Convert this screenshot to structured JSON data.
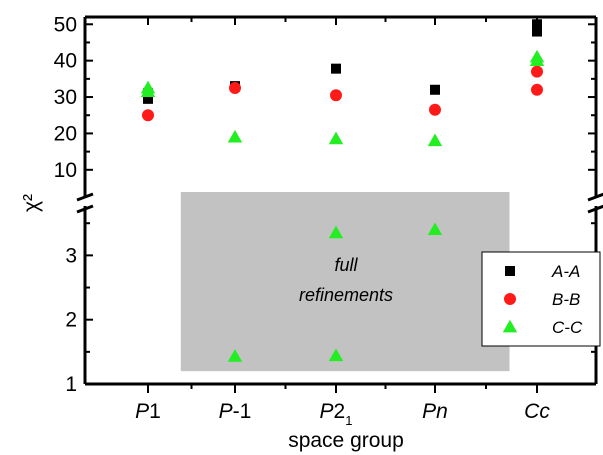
{
  "chart_data": {
    "type": "scatter",
    "title": "",
    "xlabel": "space group",
    "ylabel": "χ²",
    "categories": [
      {
        "base": "P",
        "suffix": "1",
        "sub": ""
      },
      {
        "base": "P",
        "suffix": "-1",
        "sub": ""
      },
      {
        "base": "P",
        "suffix": "2",
        "sub": "1"
      },
      {
        "base": "Pn",
        "suffix": "",
        "sub": ""
      },
      {
        "base": "Cc",
        "suffix": "",
        "sub": ""
      }
    ],
    "y_axis_broken": true,
    "y_upper": {
      "range": [
        5,
        52
      ],
      "ticks": [
        "10",
        "20",
        "30",
        "40",
        "50"
      ]
    },
    "y_lower": {
      "range": [
        1,
        3.55
      ],
      "ticks": [
        "1",
        "2",
        "3"
      ]
    },
    "series": [
      {
        "name": "A-A",
        "marker": "square",
        "color": "#000000",
        "points": [
          [
            0,
            29.5
          ],
          [
            0,
            31
          ],
          [
            1,
            33
          ],
          [
            2,
            37.8
          ],
          [
            3,
            32
          ],
          [
            4,
            48
          ],
          [
            4,
            50
          ]
        ]
      },
      {
        "name": "B-B",
        "marker": "circle",
        "color": "#ff1a1a",
        "points": [
          [
            0,
            25
          ],
          [
            1,
            32.5
          ],
          [
            2,
            30.5
          ],
          [
            3,
            26.5
          ],
          [
            4,
            37
          ],
          [
            4,
            32
          ]
        ]
      },
      {
        "name": "C-C",
        "marker": "triangle",
        "color": "#22ee22",
        "points": [
          [
            0,
            32.5
          ],
          [
            0,
            31.5
          ],
          [
            1,
            19
          ],
          [
            1,
            1.43
          ],
          [
            2,
            18.5
          ],
          [
            2,
            3.35
          ],
          [
            2,
            1.44
          ],
          [
            3,
            18
          ],
          [
            3,
            3.4
          ],
          [
            4,
            41
          ],
          [
            4,
            40
          ]
        ]
      }
    ],
    "annotation": {
      "lines": [
        "full",
        "refinements"
      ],
      "region_x": [
        0.4,
        3.75
      ],
      "region_y_lower": [
        1.2,
        3.55
      ]
    },
    "legend_placement": "right",
    "grid": false
  }
}
